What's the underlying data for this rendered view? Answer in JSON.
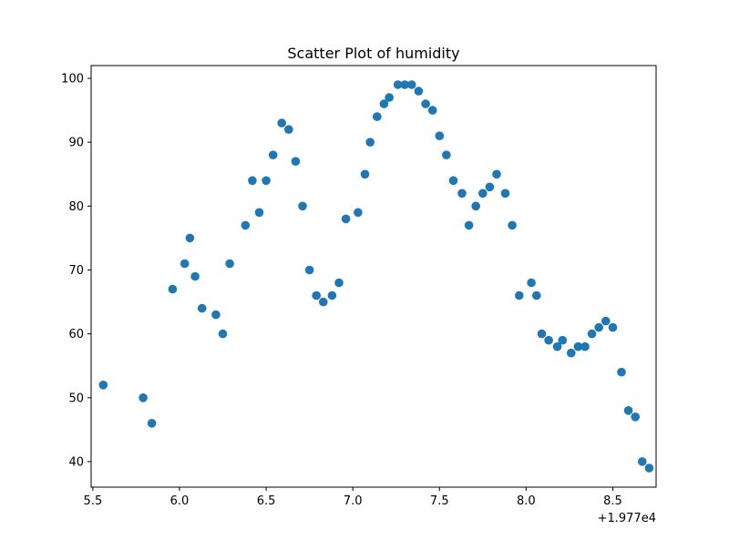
{
  "chart_data": {
    "type": "scatter",
    "title": "Scatter Plot of humidity",
    "xlabel": "",
    "ylabel": "",
    "x_offset_label": "+1.977e4",
    "xlim": [
      19775.49,
      19778.75
    ],
    "ylim": [
      36.0,
      102.0
    ],
    "x_ticks": [
      19775.5,
      19776.0,
      19776.5,
      19777.0,
      19777.5,
      19778.0,
      19778.5
    ],
    "x_tick_labels": [
      "5.5",
      "6.0",
      "6.5",
      "7.0",
      "7.5",
      "8.0",
      "8.5"
    ],
    "y_ticks": [
      40,
      50,
      60,
      70,
      80,
      90,
      100
    ],
    "y_tick_labels": [
      "40",
      "50",
      "60",
      "70",
      "80",
      "90",
      "100"
    ],
    "grid": false,
    "marker_color": "#1f77b4",
    "x": [
      19775.56,
      19775.79,
      19775.84,
      19775.96,
      19776.03,
      19776.06,
      19776.09,
      19776.13,
      19776.21,
      19776.25,
      19776.29,
      19776.38,
      19776.42,
      19776.46,
      19776.5,
      19776.54,
      19776.59,
      19776.63,
      19776.67,
      19776.71,
      19776.75,
      19776.79,
      19776.83,
      19776.88,
      19776.92,
      19776.96,
      19777.03,
      19777.07,
      19777.1,
      19777.14,
      19777.18,
      19777.21,
      19777.26,
      19777.3,
      19777.34,
      19777.38,
      19777.42,
      19777.46,
      19777.5,
      19777.54,
      19777.58,
      19777.63,
      19777.67,
      19777.71,
      19777.75,
      19777.79,
      19777.83,
      19777.88,
      19777.92,
      19777.96,
      19778.03,
      19778.06,
      19778.09,
      19778.13,
      19778.18,
      19778.21,
      19778.26,
      19778.3,
      19778.34,
      19778.38,
      19778.42,
      19778.46,
      19778.5,
      19778.55,
      19778.59,
      19778.63,
      19778.67,
      19778.71
    ],
    "y": [
      52,
      50,
      46,
      67,
      71,
      75,
      69,
      64,
      63,
      60,
      71,
      77,
      84,
      79,
      84,
      88,
      93,
      92,
      87,
      80,
      70,
      66,
      65,
      66,
      68,
      78,
      79,
      85,
      90,
      94,
      96,
      97,
      99,
      99,
      99,
      98,
      96,
      95,
      91,
      88,
      84,
      82,
      77,
      80,
      82,
      83,
      85,
      82,
      77,
      66,
      68,
      66,
      60,
      59,
      58,
      59,
      57,
      58,
      58,
      60,
      61,
      62,
      61,
      54,
      48,
      47,
      40,
      39
    ]
  }
}
